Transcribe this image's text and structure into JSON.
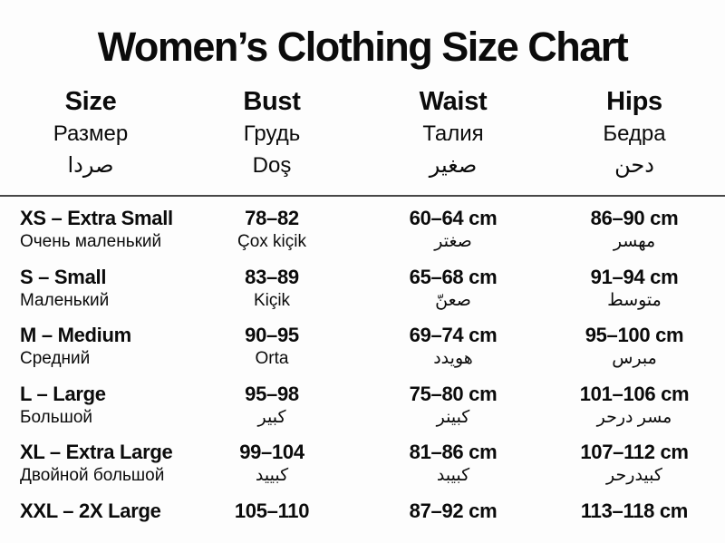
{
  "title": "Women’s Clothing Size Chart",
  "header": {
    "columns": [
      {
        "en": "Size",
        "ru": "Размер",
        "third": "صردا"
      },
      {
        "en": "Bust",
        "ru": "Грудь",
        "third": "Doş"
      },
      {
        "en": "Waist",
        "ru": "Талия",
        "third": "صغير"
      },
      {
        "en": "Hips",
        "ru": "Бедра",
        "third": "دحن"
      }
    ]
  },
  "rows": [
    {
      "size": "XS – Extra Small",
      "size_sub": "Очень маленький",
      "bust": "78–82",
      "bust_sub": "Çox kiçik",
      "waist": "60–64 cm",
      "waist_sub": "صغتر",
      "hips": "86–90 cm",
      "hips_sub": "مهسر"
    },
    {
      "size": "S – Small",
      "size_sub": "Маленький",
      "bust": "83–89",
      "bust_sub": "Kiçik",
      "waist": "65–68 cm",
      "waist_sub": "صعنّ",
      "hips": "91–94 cm",
      "hips_sub": "متوسط"
    },
    {
      "size": "M – Medium",
      "size_sub": "Средний",
      "bust": "90–95",
      "bust_sub": "Orta",
      "waist": "69–74 cm",
      "waist_sub": "هويدد",
      "hips": "95–100 cm",
      "hips_sub": "مبرس"
    },
    {
      "size": "L – Large",
      "size_sub": "Большой",
      "bust": "95–98",
      "bust_sub": "كبير",
      "waist": "75–80 cm",
      "waist_sub": "كبينر",
      "hips": "101–106 cm",
      "hips_sub": "مسر درحر"
    },
    {
      "size": "XL – Extra Large",
      "size_sub": "Двойной большой",
      "bust": "99–104",
      "bust_sub": "كبييد",
      "waist": "81–86 cm",
      "waist_sub": "كبيبد",
      "hips": "107–112 cm",
      "hips_sub": "كبيدرحر"
    },
    {
      "size": "XXL – 2X Large",
      "size_sub": "",
      "bust": "105–110",
      "bust_sub": "",
      "waist": "87–92 cm",
      "waist_sub": "",
      "hips": "113–118 cm",
      "hips_sub": ""
    }
  ],
  "colors": {
    "background": "#fdfdfd",
    "text": "#0b0b0b",
    "divider": "#474747"
  }
}
